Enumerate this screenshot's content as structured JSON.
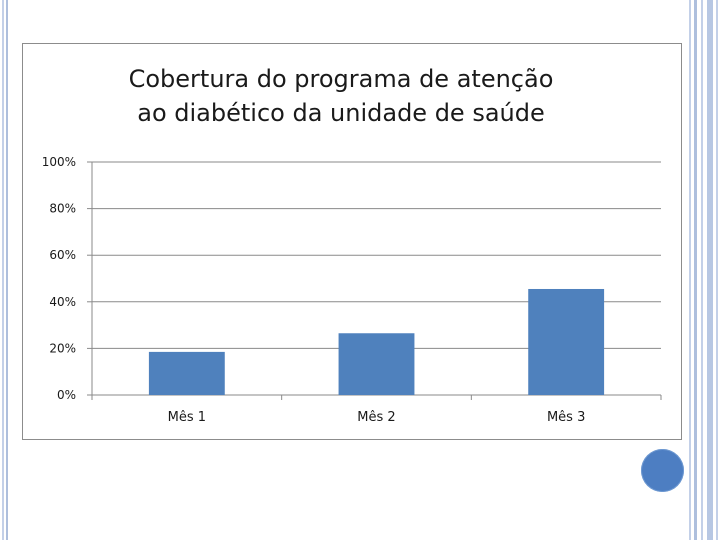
{
  "chart_data": {
    "type": "bar",
    "title_lines": [
      "Cobertura do programa de atenção",
      "ao diabético da unidade de saúde"
    ],
    "categories": [
      "Mês 1",
      "Mês 2",
      "Mês 3"
    ],
    "values": [
      18.5,
      26.5,
      45.5
    ],
    "unit": "%",
    "ylim": [
      0,
      100
    ],
    "yticks": [
      0,
      20,
      40,
      60,
      80,
      100
    ],
    "ytick_labels": [
      "0%",
      "20%",
      "40%",
      "60%",
      "80%",
      "100%"
    ],
    "grid": true,
    "legend": "none",
    "bar_color": "#4f81bd"
  },
  "theme": {
    "border_blue": "#b7c7e3",
    "circle_color": "#4d7ec2"
  }
}
